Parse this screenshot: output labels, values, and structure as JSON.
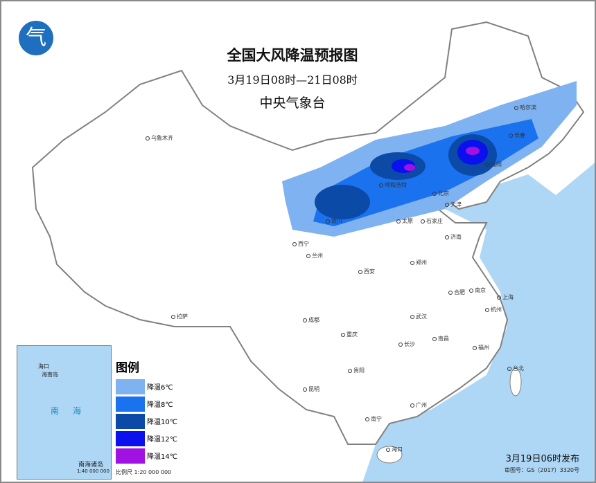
{
  "header": {
    "title": "全国大风降温预报图",
    "period": "3月19日08时—21日08时",
    "issuer": "中央气象台",
    "logo_icon": "cma-logo-icon"
  },
  "legend": {
    "title": "图例",
    "items": [
      {
        "label": "降温6℃",
        "color": "#7fb2f0"
      },
      {
        "label": "降温8℃",
        "color": "#1a72ee"
      },
      {
        "label": "降温10℃",
        "color": "#0b4aa6"
      },
      {
        "label": "降温12℃",
        "color": "#0a10ee"
      },
      {
        "label": "降温14℃",
        "color": "#a012e2"
      }
    ],
    "scale": "比例尺   1:20 000 000"
  },
  "inset": {
    "sea_label": "南海",
    "islands_label": "南海诸岛",
    "scale": "1:40 000 000",
    "haikou": "海口",
    "hainan": "海南岛"
  },
  "cities": [
    "乌鲁木齐",
    "拉萨",
    "西宁",
    "兰州",
    "银川",
    "呼和浩特",
    "北京",
    "天津",
    "石家庄",
    "太原",
    "济南",
    "郑州",
    "西安",
    "成都",
    "重庆",
    "贵阳",
    "昆明",
    "南宁",
    "广州",
    "长沙",
    "武汉",
    "南昌",
    "合肥",
    "南京",
    "上海",
    "杭州",
    "福州",
    "台北",
    "海口",
    "哈尔滨",
    "长春",
    "沈阳"
  ],
  "footer": {
    "published": "3月19日06时发布",
    "review_no": "审图号：GS（2017）3320号"
  },
  "colors": {
    "sea": "#aed6f5",
    "land": "#ffffff",
    "border": "#808080"
  }
}
